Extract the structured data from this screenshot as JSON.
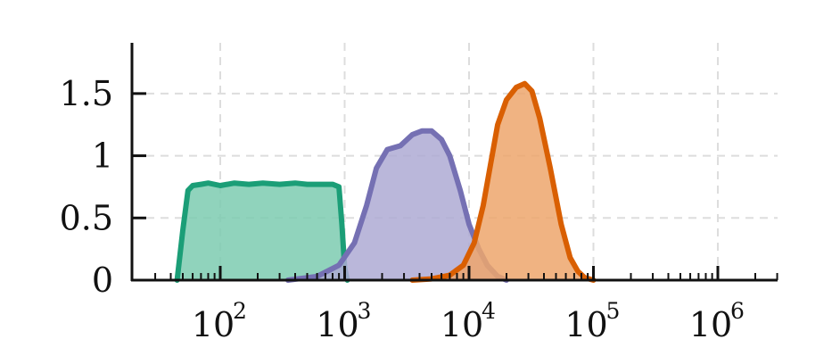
{
  "chart_data": {
    "type": "area",
    "title": "",
    "xlabel": "",
    "ylabel": "",
    "xscale": "log",
    "xlim": [
      20,
      3000000
    ],
    "ylim": [
      0,
      1.75
    ],
    "grid": true,
    "legend": "none",
    "x_ticks": [
      {
        "base": "10",
        "exp": "2",
        "value": 100
      },
      {
        "base": "10",
        "exp": "3",
        "value": 1000
      },
      {
        "base": "10",
        "exp": "4",
        "value": 10000
      },
      {
        "base": "10",
        "exp": "5",
        "value": 100000
      },
      {
        "base": "10",
        "exp": "6",
        "value": 1000000
      }
    ],
    "y_ticks": [
      {
        "label": "0",
        "value": 0
      },
      {
        "label": "0.5",
        "value": 0.5
      },
      {
        "label": "1",
        "value": 1
      },
      {
        "label": "1.5",
        "value": 1.5
      }
    ],
    "series": [
      {
        "color": "#1b9e77",
        "fill": "#7ccbb0",
        "x": [
          45,
          50,
          55,
          60,
          70,
          80,
          100,
          130,
          170,
          220,
          300,
          400,
          500,
          650,
          800,
          900,
          950,
          1000,
          1050
        ],
        "y": [
          0.0,
          0.4,
          0.72,
          0.76,
          0.77,
          0.78,
          0.76,
          0.78,
          0.77,
          0.78,
          0.77,
          0.78,
          0.77,
          0.77,
          0.77,
          0.75,
          0.45,
          0.1,
          0.0
        ]
      },
      {
        "color": "#7570b3",
        "fill": "#aeaad4",
        "x": [
          350,
          600,
          900,
          1200,
          1500,
          1800,
          2200,
          2800,
          3500,
          4200,
          5000,
          6000,
          7000,
          8500,
          10000,
          12000,
          14000,
          17000,
          20000
        ],
        "y": [
          0.0,
          0.03,
          0.12,
          0.3,
          0.6,
          0.9,
          1.05,
          1.08,
          1.17,
          1.2,
          1.2,
          1.13,
          1.0,
          0.72,
          0.45,
          0.25,
          0.12,
          0.03,
          0.0
        ]
      },
      {
        "color": "#d95f02",
        "fill": "#eda66c",
        "x": [
          3500,
          5000,
          7000,
          9000,
          11000,
          13000,
          15000,
          17000,
          20000,
          24000,
          28000,
          32000,
          37000,
          45000,
          55000,
          65000,
          75000,
          85000,
          100000
        ],
        "y": [
          0.0,
          0.01,
          0.04,
          0.12,
          0.3,
          0.6,
          0.95,
          1.25,
          1.45,
          1.55,
          1.58,
          1.52,
          1.3,
          0.9,
          0.45,
          0.18,
          0.07,
          0.02,
          0.0
        ]
      }
    ]
  }
}
